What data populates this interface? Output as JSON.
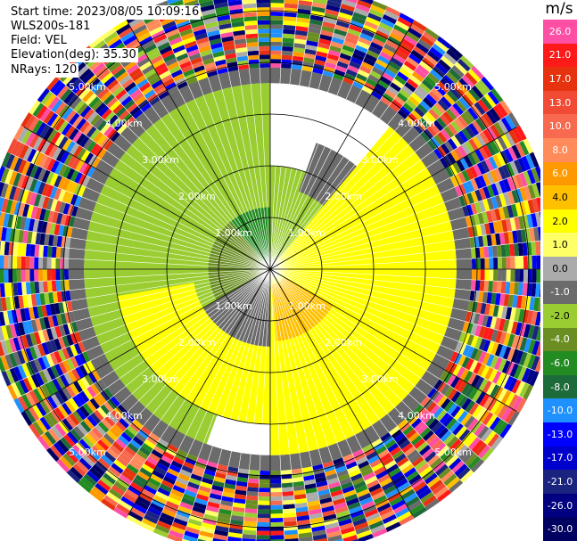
{
  "info": {
    "start_time": "Start time: 2023/08/05 10:09:16",
    "instrument": "WLS200s-181",
    "field": "Field: VEL",
    "elevation": "Elevation(deg): 35.30",
    "nrays": "NRays: 120"
  },
  "colorbar": {
    "unit": "m/s",
    "bins": [
      {
        "label": "26.0",
        "color": "#ff4fa5"
      },
      {
        "label": "21.0",
        "color": "#ff1a1a"
      },
      {
        "label": "17.0",
        "color": "#e6320f"
      },
      {
        "label": "13.0",
        "color": "#f24b35"
      },
      {
        "label": "10.0",
        "color": "#f76a4f"
      },
      {
        "label": "8.0",
        "color": "#ff8a5a"
      },
      {
        "label": "6.0",
        "color": "#ff9900"
      },
      {
        "label": "4.0",
        "color": "#ffc000"
      },
      {
        "label": "2.0",
        "color": "#ffff00"
      },
      {
        "label": "1.0",
        "color": "#ffff66"
      },
      {
        "label": "0.0",
        "color": "#ababab"
      },
      {
        "label": "-1.0",
        "color": "#6b6b6b"
      },
      {
        "label": "-2.0",
        "color": "#9acd32"
      },
      {
        "label": "-4.0",
        "color": "#6b8e23"
      },
      {
        "label": "-6.0",
        "color": "#228b22"
      },
      {
        "label": "-8.0",
        "color": "#1e6b3a"
      },
      {
        "label": "-10.0",
        "color": "#1e90ff"
      },
      {
        "label": "-13.0",
        "color": "#0000ff"
      },
      {
        "label": "-17.0",
        "color": "#0000cd"
      },
      {
        "label": "-21.0",
        "color": "#1a237e"
      },
      {
        "label": "-26.0",
        "color": "#000080"
      },
      {
        "label": "-30.0",
        "color": "#000060"
      }
    ]
  },
  "chart_data": {
    "type": "heatmap",
    "projection": "polar",
    "field": "VEL",
    "unit": "m/s",
    "elevation_deg": 35.3,
    "nrays": 120,
    "range_rings_km": [
      1.0,
      2.0,
      3.0,
      4.0,
      5.0
    ],
    "ring_labels": [
      "1.00km",
      "2.00km",
      "3.00km",
      "4.00km",
      "5.00km"
    ],
    "max_range_km": 5.5,
    "range_gates_per_km": 12,
    "spokes_deg": [
      0,
      30,
      60,
      90,
      120,
      150,
      180,
      210,
      240,
      270,
      300,
      330
    ],
    "ring_label_bearings_deg": [
      45,
      135,
      225,
      315
    ],
    "noise_start_km": 3.9,
    "velocity_regions": [
      {
        "bearing_from": 320,
        "bearing_to": 360,
        "range_from_km": 0.0,
        "range_to_km": 1.2,
        "value": -6.0
      },
      {
        "bearing_from": 240,
        "bearing_to": 320,
        "range_from_km": 0.0,
        "range_to_km": 1.2,
        "value": -4.0
      },
      {
        "bearing_from": 200,
        "bearing_to": 360,
        "range_from_km": 1.2,
        "range_to_km": 3.6,
        "value": -2.0
      },
      {
        "bearing_from": 0,
        "bearing_to": 40,
        "range_from_km": 0.0,
        "range_to_km": 2.0,
        "value": -2.0
      },
      {
        "bearing_from": 20,
        "bearing_to": 60,
        "range_from_km": 1.6,
        "range_to_km": 2.6,
        "value": -1.0
      },
      {
        "bearing_from": 40,
        "bearing_to": 180,
        "range_from_km": 0.0,
        "range_to_km": 3.6,
        "value": 2.0
      },
      {
        "bearing_from": 120,
        "bearing_to": 175,
        "range_from_km": 0.3,
        "range_to_km": 1.4,
        "value": 4.0
      },
      {
        "bearing_from": 180,
        "bearing_to": 240,
        "range_from_km": 0.0,
        "range_to_km": 1.5,
        "value": -1.0
      },
      {
        "bearing_from": 180,
        "bearing_to": 260,
        "range_from_km": 1.5,
        "range_to_km": 3.0,
        "value": 2.0
      }
    ]
  }
}
